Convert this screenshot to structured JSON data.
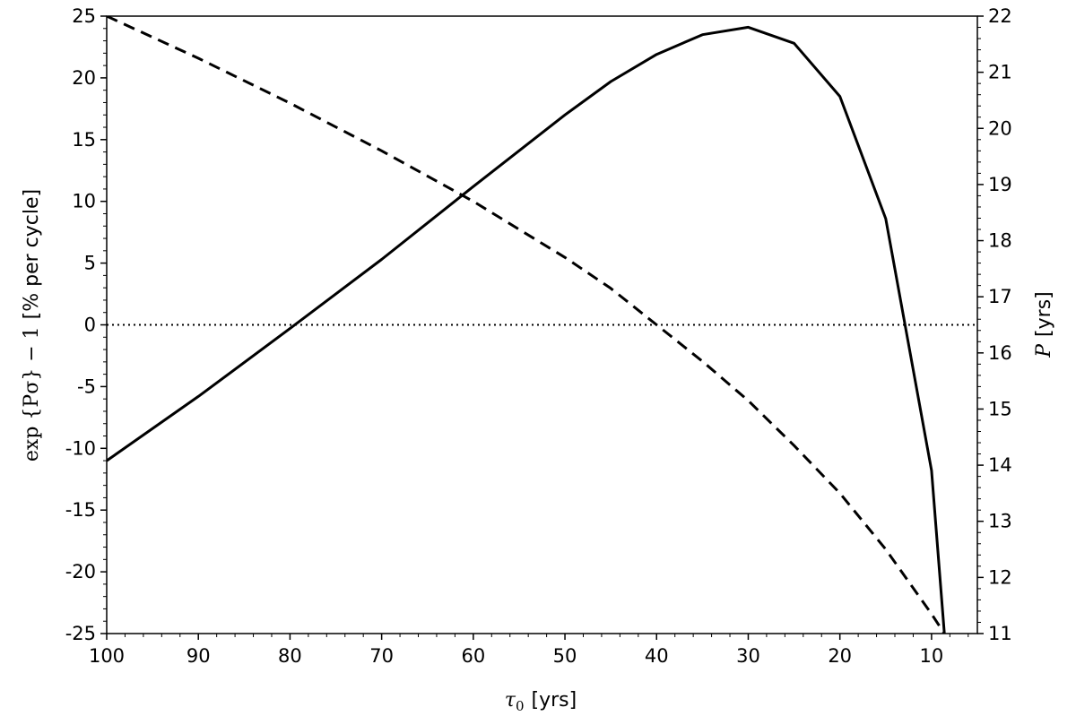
{
  "chart_data": {
    "type": "line",
    "x_axis": {
      "label_symbol": "τ",
      "label_subscript": "0",
      "label_unit": "[yrs]",
      "range": [
        100,
        5
      ],
      "reversed": true,
      "ticks": [
        100,
        90,
        80,
        70,
        60,
        50,
        40,
        30,
        20,
        10
      ],
      "tick_labels": [
        "100",
        "90",
        "80",
        "70",
        "60",
        "50",
        "40",
        "30",
        "20",
        "10"
      ]
    },
    "y_axis_left": {
      "label_math": "exp {Pσ} − 1",
      "label_unit": "[% per cycle]",
      "range": [
        -25,
        25
      ],
      "ticks": [
        -25,
        -20,
        -15,
        -10,
        -5,
        0,
        5,
        10,
        15,
        20,
        25
      ],
      "tick_labels": [
        "-25",
        "-20",
        "-15",
        "-10",
        "-5",
        "0",
        "5",
        "10",
        "15",
        "20",
        "25"
      ]
    },
    "y_axis_right": {
      "label_math": "P",
      "label_unit": "[yrs]",
      "range": [
        11,
        22
      ],
      "ticks": [
        11,
        12,
        13,
        14,
        15,
        16,
        17,
        18,
        19,
        20,
        21,
        22
      ],
      "tick_labels": [
        "11",
        "12",
        "13",
        "14",
        "15",
        "16",
        "17",
        "18",
        "19",
        "20",
        "21",
        "22"
      ]
    },
    "series": [
      {
        "axis": "left",
        "style": "solid",
        "color": "#000000",
        "x": [
          100,
          90,
          80,
          70,
          60,
          50,
          45,
          40,
          35,
          30,
          25,
          20,
          15,
          10,
          8.6
        ],
        "y": [
          -11,
          -5.8,
          -0.3,
          5.3,
          11.2,
          17.0,
          19.7,
          21.9,
          23.5,
          24.1,
          22.8,
          18.5,
          8.6,
          -11.8,
          -25
        ]
      },
      {
        "axis": "right",
        "style": "dashed",
        "color": "#000000",
        "x": [
          100,
          90,
          80,
          70,
          60,
          50,
          45,
          40,
          35,
          30,
          25,
          20,
          15,
          10,
          8.6
        ],
        "y": [
          22.0,
          21.25,
          20.45,
          19.6,
          18.7,
          17.7,
          17.15,
          16.5,
          15.85,
          15.15,
          14.35,
          13.5,
          12.5,
          11.35,
          11.0
        ]
      }
    ],
    "reference_line": {
      "axis": "left",
      "y": 0,
      "style": "dotted"
    },
    "grid": false,
    "legend": "none"
  }
}
